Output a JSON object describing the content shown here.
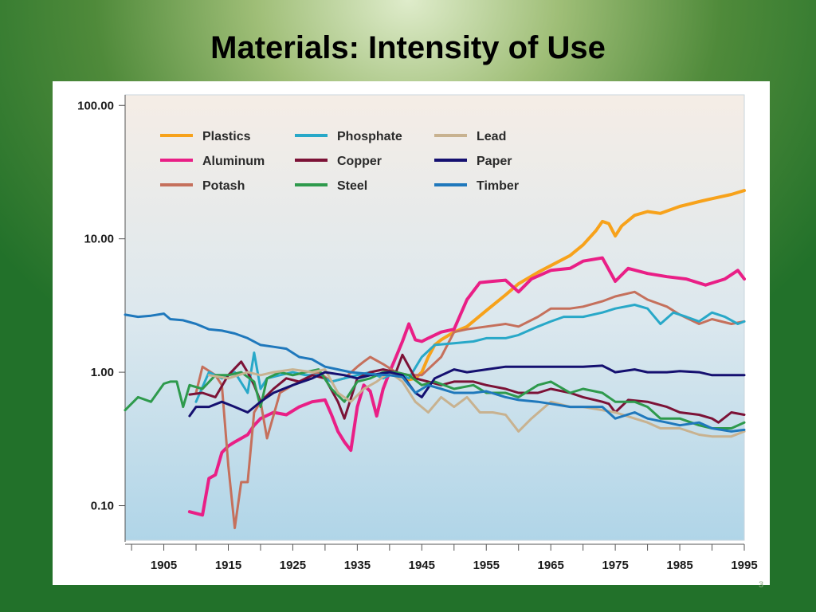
{
  "slide": {
    "title": "Materials:  Intensity of Use",
    "page_number": "3"
  },
  "chart_data": {
    "type": "line",
    "title": "",
    "xlabel": "",
    "ylabel": "",
    "y_scale": "log",
    "xlim": [
      1899,
      1995
    ],
    "ylim": [
      0.055,
      120
    ],
    "x_ticks": [
      1905,
      1915,
      1925,
      1935,
      1945,
      1955,
      1965,
      1975,
      1985,
      1995
    ],
    "y_ticks": [
      0.1,
      1,
      10,
      100
    ],
    "y_tick_labels": [
      "0.10",
      "1.00",
      "10.00",
      "100.00"
    ],
    "legend_position": "top-left",
    "series": [
      {
        "name": "Plastics",
        "color": "#f7a21b",
        "x": [
          1940,
          1942,
          1943,
          1944,
          1945,
          1946,
          1947,
          1948,
          1950,
          1952,
          1955,
          1958,
          1960,
          1963,
          1965,
          1968,
          1970,
          1972,
          1973,
          1974,
          1975,
          1976,
          1978,
          1980,
          1982,
          1985,
          1988,
          1990,
          1993,
          1995
        ],
        "y": [
          1.0,
          0.92,
          0.88,
          0.9,
          1.0,
          1.3,
          1.6,
          1.75,
          2.0,
          2.2,
          2.9,
          3.8,
          4.6,
          5.6,
          6.3,
          7.5,
          9.0,
          11.5,
          13.5,
          13.0,
          10.5,
          12.5,
          15.0,
          16.0,
          15.5,
          17.5,
          19.0,
          20.0,
          21.5,
          23.0
        ]
      },
      {
        "name": "Aluminum",
        "color": "#e91f86",
        "x": [
          1909,
          1911,
          1912,
          1913,
          1914,
          1915,
          1916,
          1918,
          1919,
          1920,
          1922,
          1924,
          1926,
          1928,
          1930,
          1931,
          1932,
          1933,
          1934,
          1935,
          1936,
          1937,
          1938,
          1939,
          1940,
          1941,
          1942,
          1943,
          1944,
          1945,
          1946,
          1948,
          1950,
          1952,
          1954,
          1956,
          1958,
          1960,
          1962,
          1965,
          1968,
          1970,
          1973,
          1975,
          1977,
          1980,
          1983,
          1986,
          1989,
          1992,
          1994,
          1995
        ],
        "y": [
          0.09,
          0.085,
          0.16,
          0.17,
          0.25,
          0.28,
          0.3,
          0.34,
          0.4,
          0.45,
          0.5,
          0.48,
          0.55,
          0.6,
          0.62,
          0.48,
          0.36,
          0.3,
          0.26,
          0.55,
          0.8,
          0.72,
          0.47,
          0.75,
          1.0,
          1.3,
          1.7,
          2.3,
          1.75,
          1.7,
          1.8,
          2.0,
          2.1,
          3.5,
          4.7,
          4.8,
          4.9,
          4.0,
          5.0,
          5.8,
          6.0,
          6.8,
          7.2,
          4.8,
          6.0,
          5.5,
          5.2,
          5.0,
          4.5,
          5.0,
          5.8,
          5.0
        ]
      },
      {
        "name": "Potash",
        "color": "#c5705c",
        "x": [
          1910,
          1911,
          1913,
          1914,
          1915,
          1916,
          1917,
          1918,
          1919,
          1920,
          1921,
          1923,
          1925,
          1927,
          1929,
          1931,
          1933,
          1935,
          1936,
          1937,
          1939,
          1941,
          1943,
          1945,
          1948,
          1950,
          1952,
          1955,
          1958,
          1960,
          1963,
          1965,
          1968,
          1970,
          1973,
          1975,
          1978,
          1980,
          1983,
          1985,
          1988,
          1990,
          1993,
          1995
        ],
        "y": [
          0.7,
          1.1,
          0.95,
          0.8,
          0.2,
          0.068,
          0.15,
          0.15,
          0.5,
          0.6,
          0.32,
          0.7,
          0.8,
          0.9,
          1.0,
          0.85,
          0.9,
          1.1,
          1.2,
          1.3,
          1.15,
          1.0,
          0.95,
          0.95,
          1.3,
          2.0,
          2.1,
          2.2,
          2.3,
          2.2,
          2.6,
          3.0,
          3.0,
          3.1,
          3.4,
          3.7,
          4.0,
          3.5,
          3.1,
          2.7,
          2.3,
          2.5,
          2.3,
          2.4
        ]
      },
      {
        "name": "Phosphate",
        "color": "#28a8c8",
        "x": [
          1910,
          1912,
          1914,
          1916,
          1918,
          1919,
          1920,
          1921,
          1923,
          1925,
          1927,
          1929,
          1931,
          1933,
          1935,
          1937,
          1939,
          1941,
          1943,
          1945,
          1947,
          1950,
          1953,
          1955,
          1958,
          1960,
          1963,
          1965,
          1967,
          1970,
          1973,
          1975,
          1978,
          1980,
          1982,
          1984,
          1986,
          1988,
          1990,
          1992,
          1994,
          1995
        ],
        "y": [
          0.6,
          1.0,
          0.9,
          1.0,
          0.7,
          1.4,
          0.75,
          0.9,
          0.95,
          1.0,
          0.95,
          0.95,
          0.85,
          0.9,
          0.95,
          1.0,
          0.9,
          1.0,
          0.9,
          1.3,
          1.6,
          1.65,
          1.7,
          1.8,
          1.8,
          1.9,
          2.2,
          2.4,
          2.6,
          2.6,
          2.8,
          3.0,
          3.2,
          3.0,
          2.3,
          2.8,
          2.6,
          2.4,
          2.8,
          2.6,
          2.3,
          2.4
        ]
      },
      {
        "name": "Copper",
        "color": "#7c1236",
        "x": [
          1909,
          1911,
          1913,
          1915,
          1917,
          1918,
          1919,
          1920,
          1922,
          1924,
          1926,
          1928,
          1930,
          1932,
          1933,
          1935,
          1937,
          1939,
          1941,
          1942,
          1944,
          1946,
          1948,
          1950,
          1953,
          1955,
          1958,
          1960,
          1963,
          1965,
          1968,
          1970,
          1973,
          1974,
          1975,
          1977,
          1980,
          1983,
          1985,
          1988,
          1990,
          1991,
          1993,
          1995
        ],
        "y": [
          0.68,
          0.7,
          0.65,
          0.95,
          1.2,
          1.0,
          0.8,
          0.6,
          0.75,
          0.9,
          0.85,
          0.95,
          0.9,
          0.6,
          0.45,
          0.9,
          1.0,
          1.05,
          1.0,
          1.35,
          0.9,
          0.85,
          0.8,
          0.85,
          0.85,
          0.8,
          0.75,
          0.7,
          0.7,
          0.75,
          0.7,
          0.65,
          0.6,
          0.58,
          0.5,
          0.62,
          0.6,
          0.55,
          0.5,
          0.48,
          0.45,
          0.42,
          0.5,
          0.48
        ]
      },
      {
        "name": "Steel",
        "color": "#2e9a4c",
        "x": [
          1899,
          1901,
          1903,
          1905,
          1906,
          1907,
          1908,
          1909,
          1911,
          1913,
          1915,
          1917,
          1919,
          1920,
          1921,
          1923,
          1925,
          1927,
          1929,
          1931,
          1933,
          1935,
          1937,
          1939,
          1941,
          1943,
          1945,
          1947,
          1950,
          1953,
          1955,
          1958,
          1960,
          1963,
          1965,
          1968,
          1970,
          1973,
          1975,
          1978,
          1980,
          1982,
          1985,
          1988,
          1990,
          1993,
          1995
        ],
        "y": [
          0.52,
          0.65,
          0.6,
          0.82,
          0.85,
          0.85,
          0.55,
          0.8,
          0.75,
          0.95,
          0.95,
          1.0,
          0.85,
          0.55,
          0.9,
          1.0,
          0.95,
          1.0,
          1.05,
          0.75,
          0.6,
          0.85,
          0.9,
          1.0,
          1.0,
          0.95,
          0.8,
          0.85,
          0.75,
          0.8,
          0.7,
          0.7,
          0.65,
          0.8,
          0.85,
          0.7,
          0.75,
          0.7,
          0.6,
          0.6,
          0.55,
          0.45,
          0.45,
          0.4,
          0.38,
          0.38,
          0.42
        ]
      },
      {
        "name": "Lead",
        "color": "#c8b290",
        "x": [
          1912,
          1915,
          1918,
          1920,
          1922,
          1925,
          1928,
          1930,
          1932,
          1934,
          1936,
          1938,
          1940,
          1942,
          1944,
          1946,
          1948,
          1950,
          1952,
          1954,
          1956,
          1958,
          1960,
          1962,
          1965,
          1968,
          1970,
          1973,
          1975,
          1978,
          1980,
          1982,
          1985,
          1988,
          1990,
          1993,
          1995
        ],
        "y": [
          0.95,
          0.9,
          1.0,
          0.95,
          1.0,
          1.05,
          1.0,
          1.05,
          0.7,
          0.6,
          0.75,
          0.85,
          1.0,
          0.85,
          0.6,
          0.5,
          0.65,
          0.55,
          0.65,
          0.5,
          0.5,
          0.48,
          0.36,
          0.45,
          0.6,
          0.55,
          0.55,
          0.52,
          0.5,
          0.45,
          0.42,
          0.38,
          0.38,
          0.34,
          0.33,
          0.33,
          0.36
        ]
      },
      {
        "name": "Paper",
        "color": "#151070",
        "x": [
          1909,
          1910,
          1912,
          1914,
          1916,
          1918,
          1920,
          1922,
          1925,
          1928,
          1930,
          1933,
          1935,
          1937,
          1940,
          1942,
          1944,
          1945,
          1947,
          1950,
          1952,
          1955,
          1958,
          1960,
          1963,
          1965,
          1968,
          1970,
          1973,
          1975,
          1978,
          1980,
          1983,
          1985,
          1988,
          1990,
          1993,
          1995
        ],
        "y": [
          0.47,
          0.55,
          0.55,
          0.6,
          0.55,
          0.5,
          0.6,
          0.7,
          0.8,
          0.9,
          1.0,
          0.95,
          0.9,
          0.95,
          1.0,
          0.95,
          0.7,
          0.65,
          0.9,
          1.05,
          1.0,
          1.05,
          1.1,
          1.1,
          1.1,
          1.1,
          1.1,
          1.1,
          1.12,
          1.0,
          1.05,
          1.0,
          1.0,
          1.02,
          1.0,
          0.95,
          0.95,
          0.95
        ]
      },
      {
        "name": "Timber",
        "color": "#1f78bc",
        "x": [
          1899,
          1901,
          1903,
          1905,
          1906,
          1908,
          1910,
          1912,
          1914,
          1916,
          1918,
          1920,
          1922,
          1924,
          1926,
          1928,
          1930,
          1932,
          1934,
          1936,
          1938,
          1940,
          1942,
          1944,
          1946,
          1948,
          1950,
          1953,
          1955,
          1958,
          1960,
          1963,
          1965,
          1968,
          1970,
          1973,
          1975,
          1978,
          1980,
          1983,
          1985,
          1988,
          1990,
          1993,
          1995
        ],
        "y": [
          2.7,
          2.6,
          2.65,
          2.75,
          2.5,
          2.45,
          2.3,
          2.1,
          2.05,
          1.95,
          1.8,
          1.6,
          1.55,
          1.5,
          1.3,
          1.25,
          1.1,
          1.05,
          1.0,
          0.98,
          0.96,
          0.95,
          0.92,
          0.7,
          0.8,
          0.75,
          0.7,
          0.7,
          0.72,
          0.65,
          0.62,
          0.6,
          0.58,
          0.55,
          0.55,
          0.55,
          0.45,
          0.5,
          0.45,
          0.42,
          0.4,
          0.42,
          0.38,
          0.36,
          0.37
        ]
      }
    ]
  }
}
